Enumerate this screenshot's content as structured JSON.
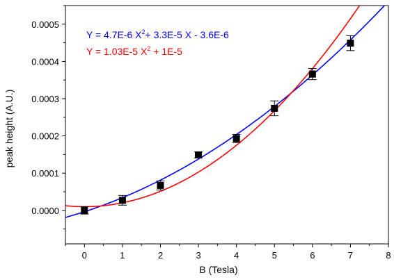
{
  "chart_data": {
    "type": "scatter",
    "xlabel": "B (Tesla)",
    "ylabel": "peak height (A.U.)",
    "xlim": [
      -0.5,
      8
    ],
    "ylim": [
      -9e-05,
      0.00055
    ],
    "xticks": [
      0,
      1,
      2,
      3,
      4,
      5,
      6,
      7,
      8
    ],
    "xtick_labels": [
      "0",
      "1",
      "2",
      "3",
      "4",
      "5",
      "6",
      "7",
      "8"
    ],
    "yticks": [
      0,
      0.0001,
      0.0002,
      0.0003,
      0.0004,
      0.0005
    ],
    "ytick_labels": [
      "0.0000",
      "0.0001",
      "0.0002",
      "0.0003",
      "0.0004",
      "0.0005"
    ],
    "grid": false,
    "series": [
      {
        "kind": "points",
        "marker": "square",
        "color": "#000000",
        "x": [
          0,
          1,
          2,
          3,
          4,
          5,
          6,
          7
        ],
        "y": [
          0.0,
          2.7e-05,
          6.7e-05,
          0.000149,
          0.000193,
          0.000274,
          0.000366,
          0.000449
        ],
        "yerr": [
          1e-05,
          1.3e-05,
          1.2e-05,
          8e-06,
          1.1e-05,
          2e-05,
          1.5e-05,
          2e-05
        ]
      },
      {
        "kind": "fit",
        "color": "#0000ff",
        "coefficients": {
          "a": 4.7e-06,
          "b": 3.3e-05,
          "c": -3.6e-06
        },
        "equation_parts": [
          "Y = 4.7E-6 X",
          "2",
          "+ 3.3E-5 X - 3.6E-6"
        ]
      },
      {
        "kind": "fit",
        "color": "#ff0000",
        "coefficients": {
          "a": 1.03e-05,
          "b": 0,
          "c": 1e-05
        },
        "equation_parts": [
          "Y = 1.03E-5 X",
          "2",
          " + 1E-5"
        ]
      }
    ]
  }
}
